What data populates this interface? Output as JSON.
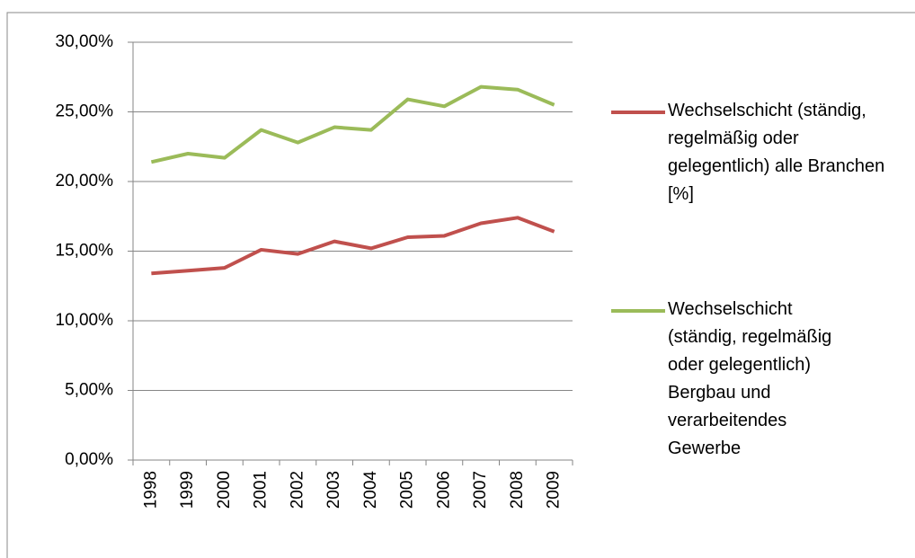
{
  "chart_data": {
    "type": "line",
    "categories": [
      "1998",
      "1999",
      "2000",
      "2001",
      "2002",
      "2003",
      "2004",
      "2005",
      "2006",
      "2007",
      "2008",
      "2009"
    ],
    "series": [
      {
        "name": "Wechselschicht (ständig, regelmäßig oder gelegentlich) alle Branchen [%]",
        "color": "#c0504d",
        "values": [
          13.4,
          13.6,
          13.8,
          15.1,
          14.8,
          15.7,
          15.2,
          16.0,
          16.1,
          17.0,
          17.4,
          16.4
        ]
      },
      {
        "name": "Wechselschicht (ständig, regelmäßig oder gelegentlich) Bergbau und verarbeitendes Gewerbe",
        "color": "#9bbb59",
        "values": [
          21.4,
          22.0,
          21.7,
          23.7,
          22.8,
          23.9,
          23.7,
          25.9,
          25.4,
          26.8,
          26.6,
          25.5
        ]
      }
    ],
    "ylim": [
      0,
      30
    ],
    "yticks": [
      {
        "value": 0,
        "label": "0,00%"
      },
      {
        "value": 5,
        "label": "5,00%"
      },
      {
        "value": 10,
        "label": "10,00%"
      },
      {
        "value": 15,
        "label": "15,00%"
      },
      {
        "value": 20,
        "label": "20,00%"
      },
      {
        "value": 25,
        "label": "25,00%"
      },
      {
        "value": 30,
        "label": "30,00%"
      }
    ],
    "grid": true,
    "legend": "right"
  }
}
